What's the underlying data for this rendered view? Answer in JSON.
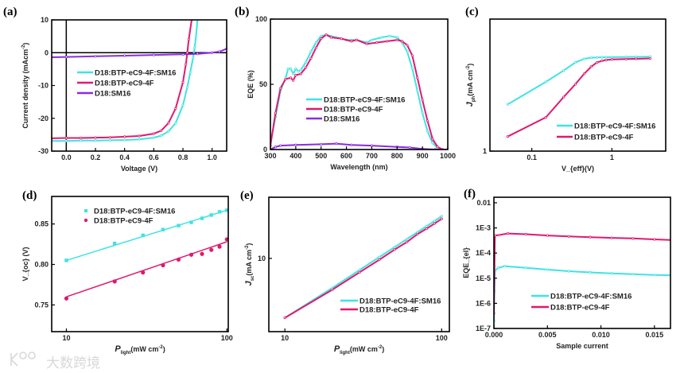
{
  "watermark": "大数跨境",
  "colors": {
    "cyan": "#3fe3e3",
    "pink": "#e0196f",
    "purple": "#8a2be2",
    "axis": "#000000"
  },
  "chart_data": [
    {
      "id": "a",
      "panel_label": "(a)",
      "type": "line",
      "xlabel": "Voltage (V)",
      "ylabel": "Current density (mAcm^{-2})",
      "xscale": "linear",
      "yscale": "linear",
      "xlim": [
        -0.1,
        1.1
      ],
      "ylim": [
        -30,
        10
      ],
      "xticks": [
        0.0,
        0.2,
        0.4,
        0.6,
        0.8,
        1.0
      ],
      "xticklabels": [
        "0.0",
        "0.2",
        "0.4",
        "0.6",
        "0.8",
        "1.0"
      ],
      "yticks": [
        -30,
        -20,
        -10,
        0,
        10
      ],
      "yticklabels": [
        "-30",
        "-20",
        "-10",
        "0",
        "10"
      ],
      "reference_lines": {
        "x0": true,
        "y0": true
      },
      "series": [
        {
          "name": "D18:BTP-eC9-4F:SM16",
          "color": "cyan",
          "x": [
            -0.1,
            0,
            0.1,
            0.2,
            0.3,
            0.4,
            0.5,
            0.6,
            0.65,
            0.7,
            0.75,
            0.8,
            0.83,
            0.85,
            0.87,
            0.88,
            0.89,
            0.9
          ],
          "y": [
            -26.9,
            -26.9,
            -26.8,
            -26.8,
            -26.7,
            -26.6,
            -26.4,
            -25.9,
            -25.3,
            -24.0,
            -21.5,
            -16,
            -10.5,
            -6,
            -1.5,
            1.5,
            5,
            10
          ]
        },
        {
          "name": "D18:BTP-eC9-4F",
          "color": "pink",
          "x": [
            -0.1,
            0,
            0.1,
            0.2,
            0.3,
            0.4,
            0.5,
            0.6,
            0.65,
            0.7,
            0.75,
            0.8,
            0.82,
            0.83,
            0.84,
            0.86
          ],
          "y": [
            -26.1,
            -26.0,
            -26.0,
            -25.9,
            -25.8,
            -25.6,
            -25.4,
            -24.7,
            -23.8,
            -21.5,
            -17,
            -9,
            -3.5,
            0,
            4,
            10
          ]
        },
        {
          "name": "D18:SM16",
          "color": "purple",
          "x": [
            -0.1,
            0,
            0.2,
            0.4,
            0.6,
            0.8,
            0.9,
            1.0,
            1.05,
            1.1
          ],
          "y": [
            -1.4,
            -1.3,
            -1.1,
            -0.9,
            -0.7,
            -0.5,
            -0.35,
            0,
            0.3,
            1.2
          ]
        }
      ]
    },
    {
      "id": "b",
      "panel_label": "(b)",
      "type": "line",
      "xlabel": "Wavelength (nm)",
      "ylabel": "EQE (%)",
      "xscale": "linear",
      "yscale": "linear",
      "xlim": [
        300,
        1000
      ],
      "ylim": [
        0,
        100
      ],
      "xticks": [
        300,
        400,
        500,
        600,
        700,
        800,
        900,
        1000
      ],
      "xticklabels": [
        "300",
        "400",
        "500",
        "600",
        "700",
        "800",
        "900",
        "1000"
      ],
      "yticks": [
        0,
        50,
        100
      ],
      "yticklabels": [
        "0",
        "50",
        "100"
      ],
      "series": [
        {
          "name": "D18:BTP-eC9-4F:SM16",
          "color": "cyan",
          "x": [
            300,
            320,
            340,
            360,
            370,
            380,
            390,
            400,
            410,
            420,
            440,
            460,
            480,
            500,
            520,
            560,
            600,
            640,
            680,
            700,
            740,
            770,
            800,
            820,
            840,
            860,
            880,
            900,
            920,
            940,
            960,
            980,
            1000
          ],
          "y": [
            5,
            25,
            45,
            55,
            62,
            62,
            58,
            62,
            60,
            61,
            67,
            75,
            82,
            87,
            88,
            86,
            84,
            84,
            82,
            84,
            86,
            87,
            86,
            82,
            75,
            62,
            45,
            28,
            14,
            5,
            1,
            0,
            0
          ]
        },
        {
          "name": "D18:BTP-eC9-4F",
          "color": "pink",
          "x": [
            300,
            320,
            340,
            360,
            380,
            390,
            400,
            420,
            440,
            460,
            480,
            500,
            520,
            540,
            580,
            620,
            640,
            680,
            720,
            760,
            800,
            820,
            840,
            860,
            880,
            900,
            920,
            940,
            960,
            980,
            1000
          ],
          "y": [
            3,
            28,
            47,
            54,
            55,
            53,
            57,
            58,
            63,
            70,
            78,
            85,
            88,
            86,
            85,
            83,
            84,
            81,
            82,
            83,
            84,
            83,
            80,
            72,
            55,
            38,
            22,
            8,
            2,
            0,
            0
          ]
        },
        {
          "name": "D18:SM16",
          "color": "purple",
          "x": [
            300,
            320,
            340,
            400,
            500,
            560,
            620,
            700,
            800,
            850,
            900,
            950,
            1000
          ],
          "y": [
            0,
            2,
            3,
            3.5,
            4,
            4.5,
            3.5,
            3,
            2,
            1.5,
            0.5,
            0,
            0
          ]
        }
      ]
    },
    {
      "id": "c",
      "panel_label": "(c)",
      "type": "line",
      "xlabel": "V_{eff}(V)",
      "ylabel": "J_{ph}(mA cm^{-2})",
      "xscale": "log",
      "yscale": "log",
      "xlim": [
        0.03,
        4.7
      ],
      "ylim": [
        1,
        100
      ],
      "xticks": [
        0.1,
        1
      ],
      "xticklabels": [
        "0.1",
        "1"
      ],
      "yticks": [
        1
      ],
      "yticklabels": [
        "1"
      ],
      "series": [
        {
          "name": "D18:BTP-eC9-4F:SM16",
          "color": "cyan",
          "x": [
            0.05,
            0.15,
            0.25,
            0.35,
            0.45,
            0.55,
            0.65,
            0.75,
            0.85,
            1,
            1.5,
            2,
            3
          ],
          "y": [
            5.1,
            11.2,
            16.6,
            22,
            25,
            26,
            26.2,
            26.3,
            26.4,
            26.5,
            26.7,
            26.8,
            27
          ]
        },
        {
          "name": "D18:BTP-eC9-4F",
          "color": "pink",
          "x": [
            0.05,
            0.15,
            0.25,
            0.35,
            0.45,
            0.55,
            0.65,
            0.75,
            0.85,
            1,
            1.5,
            2,
            3
          ],
          "y": [
            1.66,
            3.25,
            6.6,
            10.3,
            14.8,
            19,
            22,
            23.3,
            24,
            24.5,
            24.8,
            25,
            25.3
          ]
        }
      ]
    },
    {
      "id": "d",
      "panel_label": "(d)",
      "type": "scatter",
      "xlabel": "P_{light}(mW cm^{-2})",
      "ylabel": "V_{oc} (V)",
      "xscale": "log",
      "yscale": "linear",
      "xlim": [
        8.1,
        102
      ],
      "ylim": [
        0.717,
        0.884
      ],
      "xticks": [
        10,
        100
      ],
      "xticklabels": [
        "10",
        "100"
      ],
      "yticks": [
        0.75,
        0.8,
        0.85
      ],
      "yticklabels": [
        "0.75",
        "0.80",
        "0.85"
      ],
      "series": [
        {
          "name": "D18:BTP-eC9-4F:SM16",
          "color": "cyan",
          "marker": "square",
          "x": [
            10,
            20,
            30,
            40,
            50,
            60,
            70,
            80,
            90,
            100
          ],
          "y": [
            0.805,
            0.826,
            0.836,
            0.843,
            0.848,
            0.852,
            0.857,
            0.861,
            0.865,
            0.867
          ],
          "fit": {
            "x": [
              10,
              100
            ],
            "y": [
              0.805,
              0.867
            ]
          }
        },
        {
          "name": "D18:BTP-eC9-4F",
          "color": "pink",
          "marker": "circle",
          "x": [
            10,
            20,
            30,
            40,
            50,
            60,
            70,
            80,
            90,
            100
          ],
          "y": [
            0.758,
            0.779,
            0.79,
            0.799,
            0.806,
            0.812,
            0.813,
            0.818,
            0.822,
            0.831
          ],
          "fit": {
            "x": [
              10,
              100
            ],
            "y": [
              0.76,
              0.828
            ]
          }
        }
      ]
    },
    {
      "id": "e",
      "panel_label": "(e)",
      "type": "line",
      "xlabel": "P_{light}(mW cm^{-2})",
      "ylabel": "J_{sc}(mA cm^{-2})",
      "xscale": "log",
      "yscale": "log",
      "xlim": [
        7.9,
        112
      ],
      "ylim": [
        1.9,
        40
      ],
      "xticks": [
        10,
        100
      ],
      "xticklabels": [
        "10",
        "100"
      ],
      "yticks": [
        10
      ],
      "yticklabels": [
        "10"
      ],
      "series": [
        {
          "name": "D18:BTP-eC9-4F:SM16",
          "color": "cyan",
          "x": [
            10,
            20,
            30,
            40,
            50,
            60,
            70,
            80,
            90,
            100
          ],
          "y": [
            2.6,
            5.1,
            7.7,
            10.3,
            12.9,
            15.5,
            18.1,
            20.7,
            23.3,
            26
          ]
        },
        {
          "name": "D18:BTP-eC9-4F",
          "color": "pink",
          "x": [
            10,
            20,
            30,
            40,
            50,
            60,
            70,
            80,
            90,
            100
          ],
          "y": [
            2.6,
            4.9,
            7.3,
            9.7,
            12.2,
            14.5,
            17.3,
            19.6,
            22,
            24.5
          ]
        }
      ]
    },
    {
      "id": "f",
      "panel_label": "(f)",
      "type": "line",
      "xlabel": "Sample current",
      "ylabel": "EQE_{el}",
      "xscale": "linear",
      "yscale": "log",
      "xlim": [
        0,
        0.0165
      ],
      "ylim": [
        1e-07,
        0.0166
      ],
      "xticks": [
        0,
        0.005,
        0.01,
        0.015
      ],
      "xticklabels": [
        "0.000",
        "0.005",
        "0.010",
        "0.015"
      ],
      "yticks": [
        1e-07,
        1e-06,
        1e-05,
        0.0001,
        0.001,
        0.01
      ],
      "yticklabels": [
        "1E-7",
        "1E-6",
        "1E-5",
        "1E-4",
        "1E-3",
        "0.01"
      ],
      "series": [
        {
          "name": "D18:BTP-eC9-4F:SM16",
          "color": "cyan",
          "x": [
            0,
            5e-05,
            0.0001,
            0.0004,
            0.001,
            0.003,
            0.005,
            0.007,
            0.009,
            0.011,
            0.013,
            0.015,
            0.0167
          ],
          "y": [
            2e-07,
            3e-06,
            2e-05,
            2.6e-05,
            3e-05,
            2.6e-05,
            2.2e-05,
            1.9e-05,
            1.7e-05,
            1.55e-05,
            1.45e-05,
            1.35e-05,
            1.3e-05
          ]
        },
        {
          "name": "D18:BTP-eC9-4F",
          "color": "pink",
          "x": [
            0,
            5e-05,
            0.0001,
            0.0005,
            0.0013,
            0.003,
            0.005,
            0.007,
            0.009,
            0.011,
            0.013,
            0.015,
            0.0165
          ],
          "y": [
            4e-07,
            3e-05,
            0.0005,
            0.00052,
            0.0006,
            0.00056,
            0.0005,
            0.00046,
            0.00043,
            0.0004,
            0.00038,
            0.00035,
            0.00033
          ]
        }
      ]
    }
  ]
}
